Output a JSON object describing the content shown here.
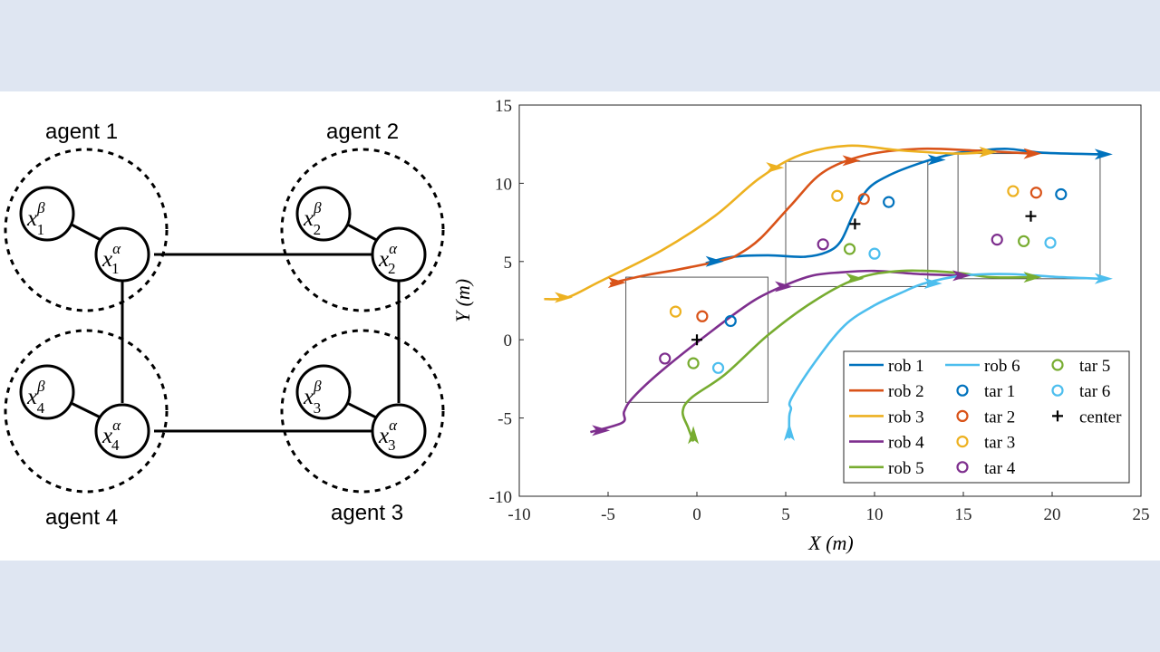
{
  "diagram": {
    "agents": [
      {
        "label": "agent 1",
        "beta_sub": "1",
        "alpha_sub": "1"
      },
      {
        "label": "agent 2",
        "beta_sub": "2",
        "alpha_sub": "2"
      },
      {
        "label": "agent 3",
        "beta_sub": "3",
        "alpha_sub": "3"
      },
      {
        "label": "agent 4",
        "beta_sub": "4",
        "alpha_sub": "4"
      }
    ],
    "var": "x",
    "beta": "β",
    "alpha": "α"
  },
  "chart_data": {
    "type": "line",
    "xlabel": "X (m)",
    "ylabel": "Y (m)",
    "xlim": [
      -10,
      25
    ],
    "ylim": [
      -10,
      15
    ],
    "xticks": [
      "-10",
      "-5",
      "0",
      "5",
      "10",
      "15",
      "20",
      "25"
    ],
    "yticks": [
      "-10",
      "-5",
      "0",
      "5",
      "10",
      "15"
    ],
    "grid": false,
    "legend_position": "bottom-right",
    "colors": {
      "rob1": "#0072BD",
      "rob2": "#D95319",
      "rob3": "#EDB120",
      "rob4": "#7E2F8E",
      "rob5": "#77AC30",
      "rob6": "#4DBEEE"
    },
    "series": [
      {
        "name": "rob 1",
        "color": "#0072BD",
        "points": [
          [
            0.5,
            4.9
          ],
          [
            2,
            5.3
          ],
          [
            4,
            5.4
          ],
          [
            6,
            5.3
          ],
          [
            7.3,
            5.6
          ],
          [
            8.1,
            6.3
          ],
          [
            8.8,
            8
          ],
          [
            9.6,
            9.6
          ],
          [
            10.8,
            10.5
          ],
          [
            12.6,
            11.3
          ],
          [
            14.5,
            11.9
          ],
          [
            16,
            12.1
          ],
          [
            17.5,
            12.2
          ],
          [
            19.5,
            11.95
          ],
          [
            22.8,
            11.85
          ]
        ]
      },
      {
        "name": "rob 2",
        "color": "#D95319",
        "points": [
          [
            -4.9,
            3.6
          ],
          [
            -3,
            4.1
          ],
          [
            -1,
            4.5
          ],
          [
            1.5,
            5.1
          ],
          [
            2.4,
            5.5
          ],
          [
            3.6,
            6.5
          ],
          [
            5.3,
            8.6
          ],
          [
            7.1,
            10.7
          ],
          [
            9.5,
            11.8
          ],
          [
            12.5,
            12.2
          ],
          [
            15.5,
            12.1
          ],
          [
            18.8,
            11.9
          ]
        ]
      },
      {
        "name": "rob 3",
        "color": "#EDB120",
        "points": [
          [
            -8.6,
            2.6
          ],
          [
            -7.3,
            2.7
          ],
          [
            -5.5,
            3.7
          ],
          [
            -2,
            5.7
          ],
          [
            1,
            7.9
          ],
          [
            3.5,
            10.3
          ],
          [
            5.8,
            11.8
          ],
          [
            8.5,
            12.4
          ],
          [
            11.5,
            12.1
          ],
          [
            14.5,
            11.9
          ],
          [
            16.3,
            12
          ]
        ]
      },
      {
        "name": "rob 4",
        "color": "#7E2F8E",
        "points": [
          [
            -6,
            -5.9
          ],
          [
            -4.2,
            -5.3
          ],
          [
            -4.1,
            -4.6
          ],
          [
            -3.6,
            -3.7
          ],
          [
            -2,
            -2
          ],
          [
            1,
            0.7
          ],
          [
            3.2,
            2.5
          ],
          [
            5,
            3.5
          ],
          [
            6.5,
            4.1
          ],
          [
            8,
            4.3
          ],
          [
            10,
            4.4
          ],
          [
            12.5,
            4.2
          ],
          [
            15,
            4.1
          ]
        ]
      },
      {
        "name": "rob 5",
        "color": "#77AC30",
        "points": [
          [
            -0.2,
            -6.5
          ],
          [
            -0.5,
            -5.6
          ],
          [
            -0.8,
            -4.6
          ],
          [
            -0.3,
            -3.7
          ],
          [
            1.6,
            -2.2
          ],
          [
            4,
            0.3
          ],
          [
            6.5,
            2.4
          ],
          [
            9,
            3.9
          ],
          [
            11.5,
            4.4
          ],
          [
            14.5,
            4.3
          ],
          [
            16.5,
            4
          ],
          [
            18.8,
            4
          ]
        ]
      },
      {
        "name": "rob 6",
        "color": "#4DBEEE",
        "points": [
          [
            5.2,
            -6.3
          ],
          [
            5.2,
            -4.9
          ],
          [
            5.3,
            -4.4
          ],
          [
            5.3,
            -3.8
          ],
          [
            6.6,
            -1.5
          ],
          [
            8.3,
            0.9
          ],
          [
            10,
            2.2
          ],
          [
            11.5,
            3
          ],
          [
            12.8,
            3.6
          ],
          [
            15,
            4.1
          ],
          [
            17.5,
            4.2
          ],
          [
            20.5,
            4
          ],
          [
            22.8,
            3.9
          ]
        ]
      }
    ],
    "arrows": [
      {
        "series": 1,
        "x": 0.9,
        "y": 5.0,
        "dir": "right"
      },
      {
        "series": 1,
        "x": 13.4,
        "y": 11.5,
        "dir": "right"
      },
      {
        "series": 1,
        "x": 22.8,
        "y": 11.85,
        "dir": "right"
      },
      {
        "series": 2,
        "x": -4.6,
        "y": 3.65,
        "dir": "right"
      },
      {
        "series": 2,
        "x": 8.6,
        "y": 11.45,
        "dir": "right"
      },
      {
        "series": 2,
        "x": 18.8,
        "y": 11.9,
        "dir": "right"
      },
      {
        "series": 3,
        "x": -7.6,
        "y": 2.7,
        "dir": "right"
      },
      {
        "series": 3,
        "x": 4.3,
        "y": 11.0,
        "dir": "right"
      },
      {
        "series": 3,
        "x": 16.3,
        "y": 12.0,
        "dir": "right"
      },
      {
        "series": 4,
        "x": -5.5,
        "y": -5.8,
        "dir": "right"
      },
      {
        "series": 4,
        "x": 4.8,
        "y": 3.4,
        "dir": "right"
      },
      {
        "series": 4,
        "x": 14.8,
        "y": 4.1,
        "dir": "right"
      },
      {
        "series": 5,
        "x": -0.2,
        "y": -6.2,
        "dir": "down"
      },
      {
        "series": 5,
        "x": 8.8,
        "y": 3.9,
        "dir": "right"
      },
      {
        "series": 5,
        "x": 18.8,
        "y": 4.0,
        "dir": "right"
      },
      {
        "series": 6,
        "x": 5.2,
        "y": -6.0,
        "dir": "down"
      },
      {
        "series": 6,
        "x": 13.2,
        "y": 3.6,
        "dir": "right"
      },
      {
        "series": 6,
        "x": 22.8,
        "y": 3.9,
        "dir": "right"
      }
    ],
    "boxes": [
      {
        "x0": -4,
        "x1": 4,
        "y0": -4,
        "y1": 4
      },
      {
        "x0": 5,
        "x1": 13,
        "y0": 3.4,
        "y1": 11.4
      },
      {
        "x0": 14.7,
        "x1": 22.7,
        "y0": 3.9,
        "y1": 11.9
      }
    ],
    "targets": [
      {
        "name": "tar 1",
        "color": "#0072BD",
        "points": [
          [
            1.9,
            1.2
          ],
          [
            10.8,
            8.8
          ],
          [
            20.5,
            9.3
          ]
        ]
      },
      {
        "name": "tar 2",
        "color": "#D95319",
        "points": [
          [
            0.3,
            1.5
          ],
          [
            9.4,
            9.0
          ],
          [
            19.1,
            9.4
          ]
        ]
      },
      {
        "name": "tar 3",
        "color": "#EDB120",
        "points": [
          [
            -1.2,
            1.8
          ],
          [
            7.9,
            9.2
          ],
          [
            17.8,
            9.5
          ]
        ]
      },
      {
        "name": "tar 4",
        "color": "#7E2F8E",
        "points": [
          [
            -1.8,
            -1.2
          ],
          [
            7.1,
            6.1
          ],
          [
            16.9,
            6.4
          ]
        ]
      },
      {
        "name": "tar 5",
        "color": "#77AC30",
        "points": [
          [
            -0.2,
            -1.5
          ],
          [
            8.6,
            5.8
          ],
          [
            18.4,
            6.3
          ]
        ]
      },
      {
        "name": "tar 6",
        "color": "#4DBEEE",
        "points": [
          [
            1.2,
            -1.8
          ],
          [
            10.0,
            5.5
          ],
          [
            19.9,
            6.2
          ]
        ]
      }
    ],
    "centers": {
      "name": "center",
      "points": [
        [
          0,
          0
        ],
        [
          8.9,
          7.4
        ],
        [
          18.8,
          7.9
        ]
      ]
    },
    "legend": [
      "rob 1",
      "rob 2",
      "rob 3",
      "rob 4",
      "rob 5",
      "rob 6",
      "tar 1",
      "tar 2",
      "tar 3",
      "tar 4",
      "tar 5",
      "tar 6",
      "center"
    ]
  }
}
